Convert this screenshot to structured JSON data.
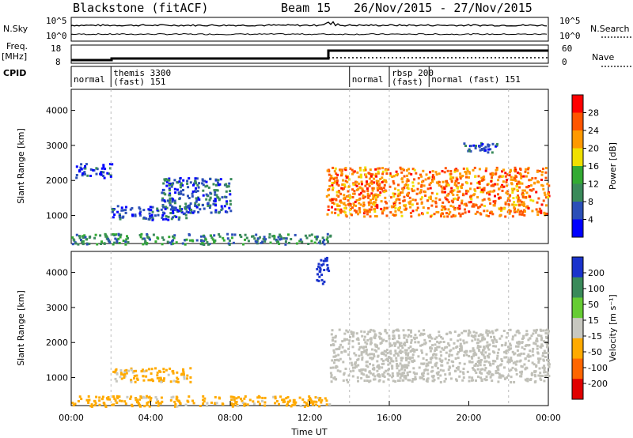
{
  "header": {
    "station": "Blackstone (fitACF)",
    "beam": "Beam 15",
    "dates": "26/Nov/2015 - 27/Nov/2015"
  },
  "noise_panel": {
    "left_label": "N.Sky",
    "right_label": "N.Search",
    "ticks": [
      "10^5",
      "10^0"
    ]
  },
  "freq_panel": {
    "label_line1": "Freq.",
    "label_line2": "[MHz]",
    "left_ticks": [
      "18",
      "8"
    ],
    "right_ticks": [
      "60",
      "0"
    ],
    "right_label": "Nave"
  },
  "cpid_panel": {
    "label": "CPID",
    "segments": [
      {
        "name": "normal",
        "start_h": 0.0,
        "end_h": 2.0
      },
      {
        "name": "themis 3300\n(fast) 151",
        "start_h": 2.0,
        "end_h": 14.0
      },
      {
        "name": "normal",
        "start_h": 14.0,
        "end_h": 16.0
      },
      {
        "name": "rbsp 200\n(fast)",
        "start_h": 16.0,
        "end_h": 18.0
      },
      {
        "name": "normal (fast) 151",
        "start_h": 18.0,
        "end_h": 22.0
      }
    ]
  },
  "power_panel": {
    "ylabel": "Slant Range [km]",
    "colorbar_label": "Power [dB]",
    "colorbar_ticks": [
      "28",
      "24",
      "20",
      "16",
      "12",
      "8",
      "4"
    ]
  },
  "velocity_panel": {
    "ylabel": "Slant Range [km]",
    "colorbar_label": "Velocity [m s⁻¹]",
    "colorbar_ticks": [
      "200",
      "100",
      "50",
      "15",
      "-15",
      "-50",
      "-100",
      "-200"
    ]
  },
  "xaxis": {
    "label": "Time UT",
    "ticks": [
      "00:00",
      "04:00",
      "08:00",
      "12:00",
      "16:00",
      "20:00",
      "00:00"
    ]
  },
  "colors": {
    "power_scale": [
      "#0000ff",
      "#2b4fb8",
      "#3a8a5a",
      "#33aa33",
      "#f0e000",
      "#ff9900",
      "#ff5500",
      "#ff0000"
    ],
    "velocity_scale": [
      "#e00000",
      "#ff6600",
      "#ffaa00",
      "#c8c8c0",
      "#66cc33",
      "#3a8a5a",
      "#1a33cc"
    ],
    "ground_scatter": "#c0c0b8"
  },
  "chart_data": [
    {
      "type": "heatmap",
      "title": "Power",
      "x_unit": "hours UT",
      "xlim": [
        0,
        24
      ],
      "ylim": [
        200,
        4600
      ],
      "yticks": [
        1000,
        2000,
        3000,
        4000
      ],
      "clim": [
        0,
        32
      ],
      "features": [
        {
          "region": "E/F scatter band",
          "x": [
            0.2,
            2.0
          ],
          "y_range": [
            2100,
            2500
          ],
          "level_db": 5
        },
        {
          "region": "low scatter patch",
          "x": [
            2.0,
            6.0
          ],
          "y_range": [
            900,
            1300
          ],
          "level_db": 6
        },
        {
          "region": "diagonal streak",
          "x": [
            4.5,
            8.0
          ],
          "y_range": [
            1100,
            2100
          ],
          "level_db": 7
        },
        {
          "region": "near-range band",
          "x": [
            0.0,
            13.0
          ],
          "y_range": [
            200,
            500
          ],
          "level_db": 10
        },
        {
          "region": "evening intense band",
          "x": [
            12.8,
            24.0
          ],
          "y_range": [
            1000,
            2400
          ],
          "level_db": 24
        },
        {
          "region": "upper patch",
          "x": [
            19.5,
            21.5
          ],
          "y_range": [
            2800,
            3100
          ],
          "level_db": 6
        }
      ]
    },
    {
      "type": "heatmap",
      "title": "Velocity",
      "x_unit": "hours UT",
      "xlim": [
        0,
        24
      ],
      "ylim": [
        200,
        4600
      ],
      "yticks": [
        1000,
        2000,
        3000,
        4000
      ],
      "clim": [
        -200,
        200
      ],
      "features": [
        {
          "region": "low scatter patch",
          "x": [
            2.0,
            6.0
          ],
          "y_range": [
            900,
            1300
          ],
          "velocity": -50
        },
        {
          "region": "near-range band",
          "x": [
            0.0,
            13.0
          ],
          "y_range": [
            200,
            500
          ],
          "velocity": -50
        },
        {
          "region": "ground scatter band",
          "x": [
            13.0,
            24.0
          ],
          "y_range": [
            900,
            2400
          ],
          "velocity": 0
        },
        {
          "region": "high-range spike",
          "x": [
            12.3,
            12.9
          ],
          "y_range": [
            3700,
            4500
          ],
          "velocity": 200
        }
      ]
    }
  ]
}
